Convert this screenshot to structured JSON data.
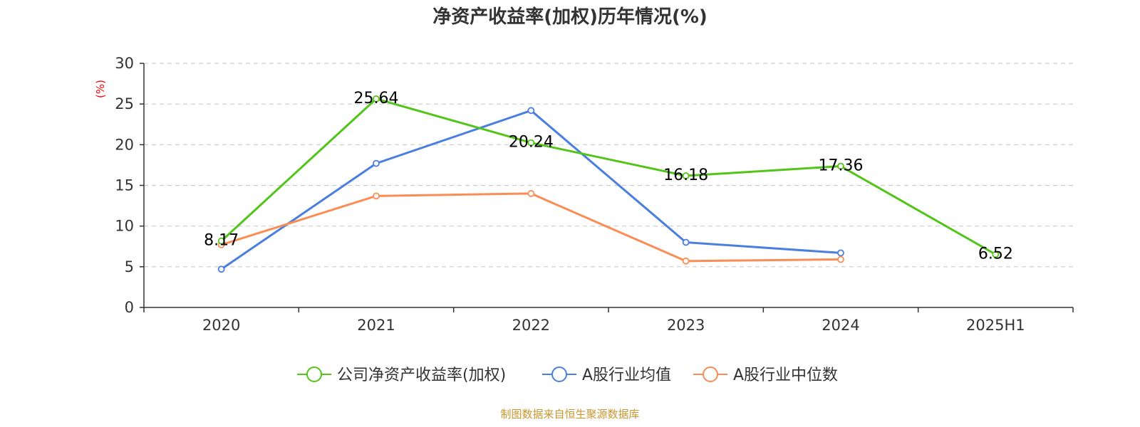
{
  "chart_data": {
    "type": "line",
    "title": "净资产收益率(加权)历年情况(%)",
    "ylabel": "(%)",
    "xlabel": "",
    "categories": [
      "2020",
      "2021",
      "2022",
      "2023",
      "2024",
      "2025H1"
    ],
    "ylim": [
      0,
      30
    ],
    "yticks": [
      0,
      5,
      10,
      15,
      20,
      25,
      30
    ],
    "grid": true,
    "legend_position": "bottom",
    "series": [
      {
        "name": "公司净资产收益率(加权)",
        "color": "#52c41a",
        "values": [
          8.17,
          25.64,
          20.24,
          16.18,
          17.36,
          6.52
        ],
        "labels": [
          "8.17",
          "25.64",
          "20.24",
          "16.18",
          "17.36",
          "6.52"
        ]
      },
      {
        "name": "A股行业均值",
        "color": "#4a7fe0",
        "values": [
          4.7,
          17.7,
          24.2,
          8.0,
          6.7,
          null
        ]
      },
      {
        "name": "A股行业中位数",
        "color": "#fb8c55",
        "values": [
          7.7,
          13.7,
          14.0,
          5.7,
          5.9,
          null
        ]
      }
    ],
    "ylabel_color": "#ff0000"
  },
  "source_text": "制图数据来自恒生聚源数据库",
  "source_color": "#c8962f"
}
